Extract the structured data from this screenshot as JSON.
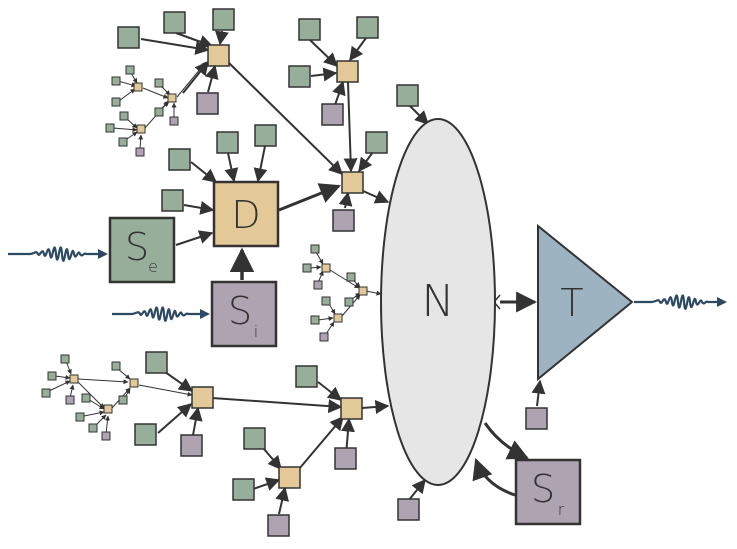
{
  "colors": {
    "green": "#97ae9a",
    "tan": "#e3c898",
    "mauve": "#aea3b0",
    "ellipse": "#e6e6e6",
    "triangle": "#9db3c1",
    "wave": "#2e4a63",
    "stroke": "#333333"
  },
  "labels": {
    "D": "D",
    "N": "N",
    "T": "T",
    "Se_main": "S",
    "Se_sub": "e",
    "Si_main": "S",
    "Si_sub": "i",
    "Sr_main": "S",
    "Sr_sub": "r"
  }
}
